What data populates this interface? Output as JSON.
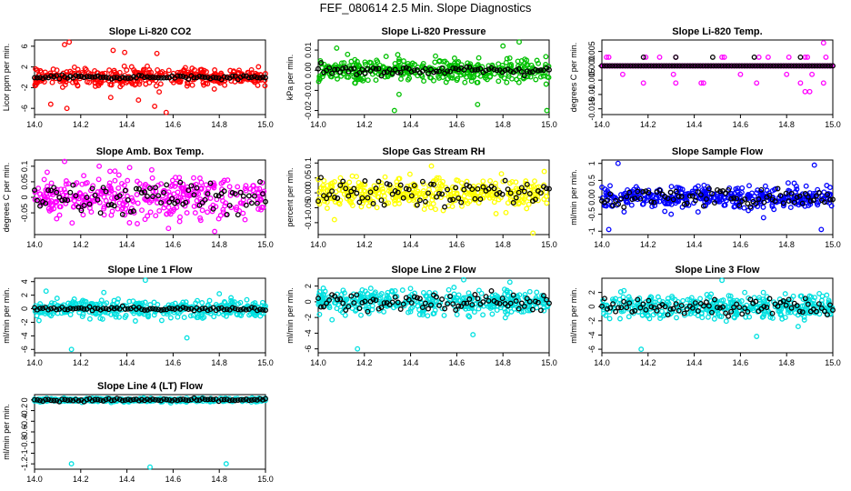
{
  "figure": {
    "title": "FEF_080614  2.5 Min. Slope Diagnostics"
  },
  "chart_data": [
    {
      "type": "scatter",
      "id": "co2",
      "title": "Slope Li-820 CO2",
      "ylabel": "Licor ppm per min.",
      "color": "#ff0000",
      "xlim": [
        14.0,
        15.0
      ],
      "ylim": [
        -7.2,
        7.2
      ],
      "xticks": [
        "14.0",
        "14.2",
        "14.4",
        "14.6",
        "14.8",
        "15.0"
      ],
      "yticks": [
        -6,
        -2,
        2,
        6
      ],
      "scatter_spread": 1.3,
      "black_spread": 0.25,
      "outliers": [
        [
          14.13,
          6.3
        ],
        [
          14.15,
          6.8
        ],
        [
          14.34,
          5.2
        ],
        [
          14.53,
          4.6
        ],
        [
          14.57,
          -6.8
        ],
        [
          14.07,
          -5.2
        ],
        [
          14.14,
          -6.0
        ],
        [
          14.33,
          -3.9
        ],
        [
          14.45,
          -4.4
        ],
        [
          14.52,
          -5.6
        ],
        [
          14.39,
          4.8
        ]
      ]
    },
    {
      "type": "scatter",
      "id": "pressure",
      "title": "Slope Li-820 Pressure",
      "ylabel": "kPa per min.",
      "color": "#00c000",
      "xlim": [
        14.0,
        15.0
      ],
      "ylim": [
        -0.022,
        0.015
      ],
      "xticks": [
        "14.0",
        "14.2",
        "14.4",
        "14.6",
        "14.8",
        "15.0"
      ],
      "yticks": [
        -0.02,
        -0.01,
        0.0,
        0.01
      ],
      "scatter_spread": 0.004,
      "black_spread": 0.0015,
      "outliers": [
        [
          14.33,
          -0.02
        ],
        [
          14.69,
          -0.017
        ],
        [
          14.99,
          -0.02
        ],
        [
          14.87,
          0.014
        ],
        [
          14.08,
          0.011
        ],
        [
          14.35,
          -0.012
        ],
        [
          14.8,
          0.012
        ]
      ]
    },
    {
      "type": "scatter",
      "id": "temp",
      "title": "Slope Li-820 Temp.",
      "ylabel": "degrees C per min.",
      "color": "#ff00ff",
      "xlim": [
        14.0,
        15.0
      ],
      "ylim": [
        -0.017,
        0.009
      ],
      "xticks": [
        "14.0",
        "14.2",
        "14.4",
        "14.6",
        "14.8",
        "15.0"
      ],
      "yticks": [
        -0.015,
        -0.01,
        -0.005,
        0.0,
        0.005
      ],
      "quantized": [
        0.0,
        0.003,
        -0.003,
        -0.006
      ],
      "quantized_x": [
        14.02,
        14.09,
        14.18,
        14.25,
        14.31,
        14.43,
        14.52,
        14.6,
        14.67,
        14.72,
        14.8,
        14.86,
        14.88,
        14.91,
        14.96
      ],
      "outliers": [
        [
          14.88,
          -0.009
        ],
        [
          14.9,
          -0.009
        ],
        [
          14.32,
          -0.006
        ],
        [
          14.44,
          -0.006
        ],
        [
          14.96,
          0.008
        ]
      ]
    },
    {
      "type": "scatter",
      "id": "ambtemp",
      "title": "Slope Amb. Box Temp.",
      "ylabel": "degrees C per min.",
      "color": "#ff00ff",
      "xlim": [
        14.0,
        15.0
      ],
      "ylim": [
        -0.12,
        0.12
      ],
      "xticks": [
        "14.0",
        "14.2",
        "14.4",
        "14.6",
        "14.8",
        "15.0"
      ],
      "yticks": [
        -0.05,
        0.0,
        0.05,
        0.1
      ],
      "scatter_spread": 0.045,
      "black_spread": 0.035,
      "outliers": [
        [
          14.13,
          0.12
        ],
        [
          14.78,
          -0.11
        ],
        [
          14.28,
          0.1
        ],
        [
          14.58,
          -0.1
        ]
      ]
    },
    {
      "type": "scatter",
      "id": "rh",
      "title": "Slope Gas Stream RH",
      "ylabel": "percent per min.",
      "color": "#ffff00",
      "xlim": [
        14.0,
        15.0
      ],
      "ylim": [
        -0.14,
        0.11
      ],
      "xticks": [
        "14.0",
        "14.2",
        "14.4",
        "14.6",
        "14.8",
        "15.0"
      ],
      "yticks": [
        -0.1,
        -0.05,
        0.0,
        0.05,
        0.1
      ],
      "scatter_spread": 0.035,
      "black_spread": 0.03,
      "outliers": [
        [
          14.93,
          -0.14
        ],
        [
          14.07,
          -0.09
        ],
        [
          14.49,
          0.09
        ],
        [
          14.77,
          -0.07
        ]
      ]
    },
    {
      "type": "scatter",
      "id": "sample",
      "title": "Slope Sample Flow",
      "ylabel": "ml/min per min.",
      "color": "#0000ff",
      "xlim": [
        14.0,
        15.0
      ],
      "ylim": [
        -1.1,
        1.1
      ],
      "xticks": [
        "14.0",
        "14.2",
        "14.4",
        "14.6",
        "14.8",
        "15.0"
      ],
      "yticks": [
        -1.0,
        -0.5,
        0.0,
        0.5,
        1.0
      ],
      "scatter_spread": 0.22,
      "black_spread": 0.2,
      "outliers": [
        [
          14.07,
          1.0
        ],
        [
          14.92,
          0.95
        ],
        [
          14.03,
          -0.95
        ],
        [
          14.95,
          -0.95
        ],
        [
          14.3,
          -0.5
        ],
        [
          14.7,
          -0.6
        ]
      ]
    },
    {
      "type": "scatter",
      "id": "line1",
      "title": "Slope Line 1 Flow",
      "ylabel": "ml/min per min.",
      "color": "#00e0e0",
      "xlim": [
        14.0,
        15.0
      ],
      "ylim": [
        -6.5,
        4.5
      ],
      "xticks": [
        "14.0",
        "14.2",
        "14.4",
        "14.6",
        "14.8",
        "15.0"
      ],
      "yticks": [
        -6,
        -4,
        -2,
        0,
        2,
        4
      ],
      "scatter_spread": 0.9,
      "black_spread": 0.2,
      "outliers": [
        [
          14.16,
          -6.0
        ],
        [
          14.48,
          4.2
        ],
        [
          14.66,
          -4.3
        ],
        [
          14.05,
          2.6
        ],
        [
          14.3,
          2.4
        ],
        [
          14.8,
          2.2
        ]
      ]
    },
    {
      "type": "scatter",
      "id": "line2",
      "title": "Slope Line 2 Flow",
      "ylabel": "ml/min per min.",
      "color": "#00e0e0",
      "xlim": [
        14.0,
        15.0
      ],
      "ylim": [
        -6.5,
        3.0
      ],
      "xticks": [
        "14.0",
        "14.2",
        "14.4",
        "14.6",
        "14.8",
        "15.0"
      ],
      "yticks": [
        -6,
        -4,
        -2,
        0,
        2
      ],
      "scatter_spread": 1.1,
      "black_spread": 0.9,
      "outliers": [
        [
          14.17,
          -6.0
        ],
        [
          14.67,
          -4.2
        ],
        [
          14.83,
          2.5
        ],
        [
          14.63,
          2.8
        ],
        [
          14.06,
          -2.3
        ]
      ]
    },
    {
      "type": "scatter",
      "id": "line3",
      "title": "Slope Line 3 Flow",
      "ylabel": "ml/min per min.",
      "color": "#00e0e0",
      "xlim": [
        14.0,
        15.0
      ],
      "ylim": [
        -6.5,
        4.0
      ],
      "xticks": [
        "14.0",
        "14.2",
        "14.4",
        "14.6",
        "14.8",
        "15.0"
      ],
      "yticks": [
        -6,
        -4,
        -2,
        0,
        2
      ],
      "scatter_spread": 1.1,
      "black_spread": 1.0,
      "outliers": [
        [
          14.17,
          -6.0
        ],
        [
          14.67,
          -4.2
        ],
        [
          14.52,
          3.7
        ],
        [
          14.85,
          -2.8
        ]
      ]
    },
    {
      "type": "scatter",
      "id": "line4",
      "title": "Slope Line 4 (LT) Flow",
      "ylabel": "ml/min per min.",
      "color": "#00e0e0",
      "xlim": [
        14.0,
        15.0
      ],
      "ylim": [
        -1.3,
        0.1
      ],
      "xticks": [
        "14.0",
        "14.2",
        "14.4",
        "14.6",
        "14.8",
        "15.0"
      ],
      "yticks": [
        -1.2,
        -1.0,
        -0.8,
        -0.6,
        -0.4,
        -0.2,
        0.0
      ],
      "scatter_spread": 0.025,
      "black_spread": 0.02,
      "outliers": [
        [
          14.16,
          -1.2
        ],
        [
          14.5,
          -1.26
        ],
        [
          14.83,
          -1.2
        ]
      ]
    }
  ]
}
